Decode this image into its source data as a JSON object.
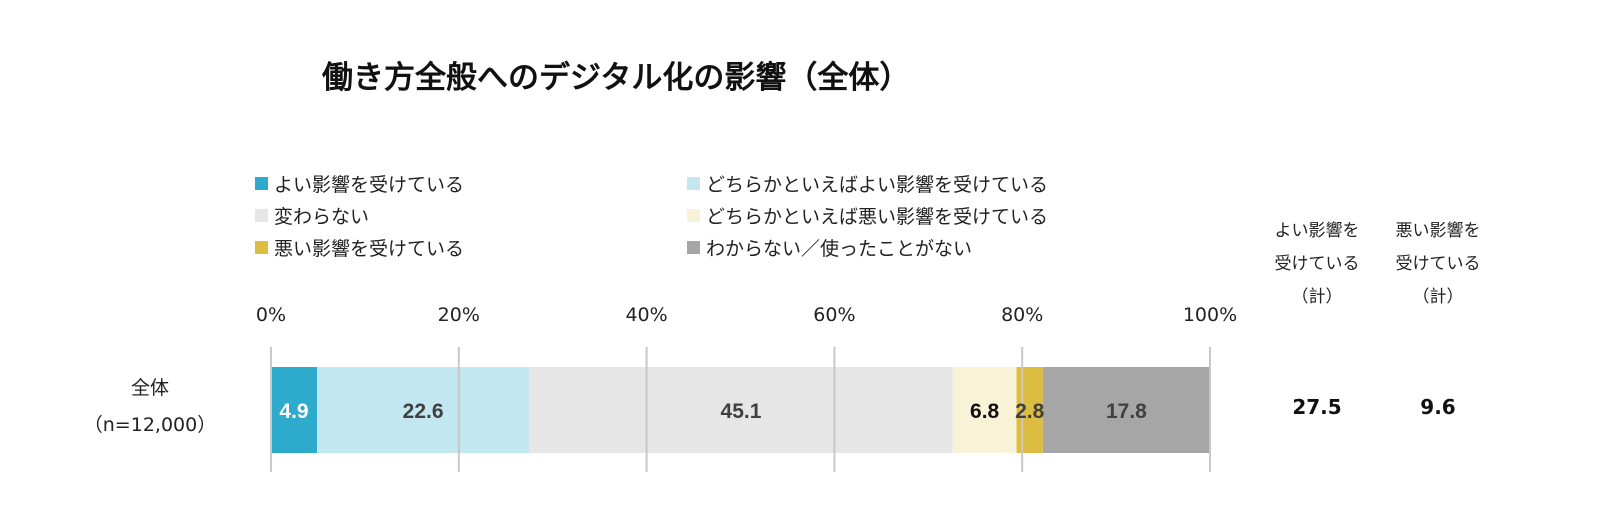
{
  "chart_data": {
    "type": "bar",
    "orientation": "horizontal",
    "stacked": true,
    "title": "働き方全般へのデジタル化の影響（全体）",
    "categories": [
      "全体"
    ],
    "category_sublabels": [
      "（n=12,000）"
    ],
    "series": [
      {
        "name": "よい影響を受けている",
        "values": [
          4.9
        ],
        "color": "#2eaacc",
        "label_color": "#ffffff"
      },
      {
        "name": "どちらかといえばよい影響を受けている",
        "values": [
          22.6
        ],
        "color": "#c3e7f1",
        "label_color": "#404040"
      },
      {
        "name": "変わらない",
        "values": [
          45.1
        ],
        "color": "#e6e6e6",
        "label_color": "#404040"
      },
      {
        "name": "どちらかといえば悪い影響を受けている",
        "values": [
          6.8
        ],
        "color": "#f8f2d6",
        "label_color": "#111111"
      },
      {
        "name": "悪い影響を受けている",
        "values": [
          2.8
        ],
        "color": "#dcbd42",
        "label_color": "#404040"
      },
      {
        "name": "わからない／使ったことがない",
        "values": [
          17.8
        ],
        "color": "#a6a6a6",
        "label_color": "#404040"
      }
    ],
    "x_axis": {
      "ticks": [
        "0%",
        "20%",
        "40%",
        "60%",
        "80%",
        "100%"
      ],
      "range": [
        0,
        100
      ]
    },
    "legend_position": "top",
    "summary_columns": [
      {
        "label_lines": [
          "よい影響を",
          "受けている",
          "（計）"
        ],
        "values": [
          27.5
        ]
      },
      {
        "label_lines": [
          "悪い影響を",
          "受けている",
          "（計）"
        ],
        "values": [
          9.6
        ]
      }
    ]
  }
}
